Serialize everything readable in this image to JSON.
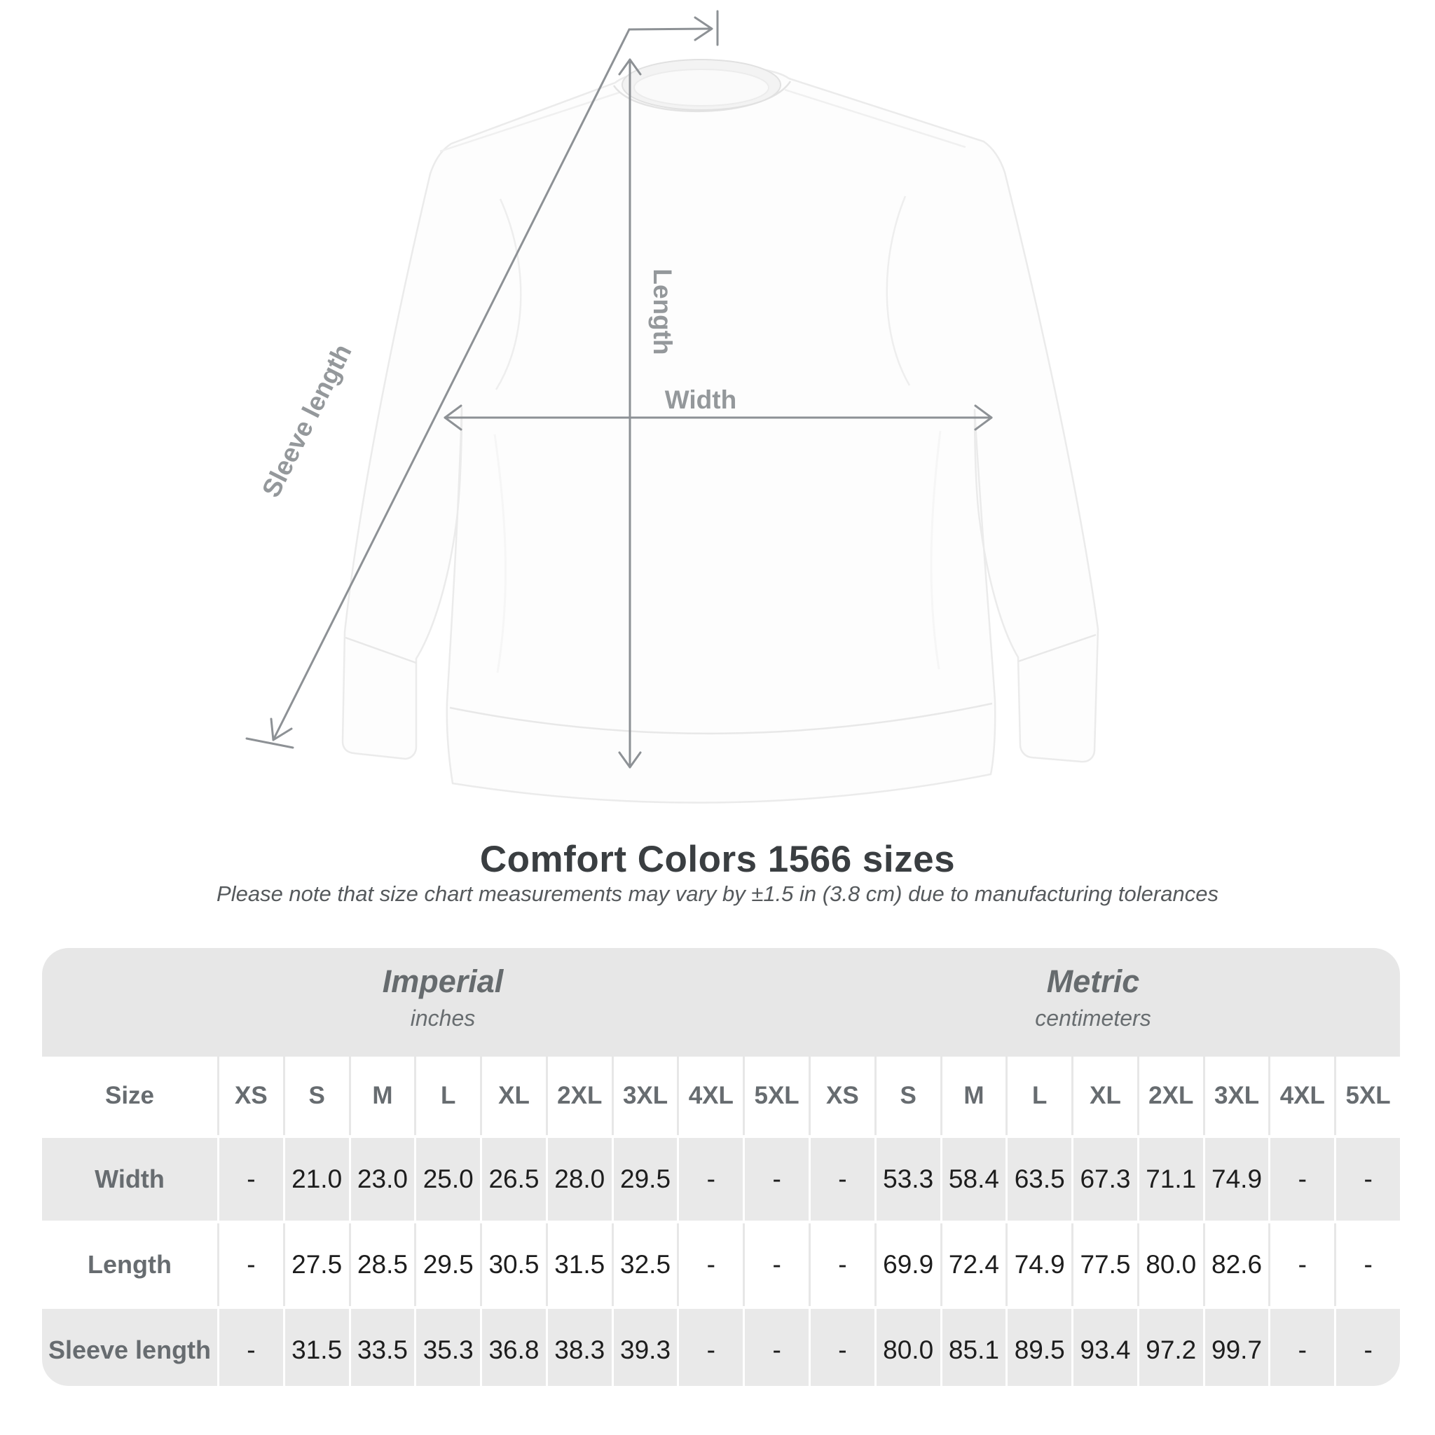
{
  "title": "Comfort Colors 1566 sizes",
  "subtitle": "Please note that size chart measurements may vary by ±1.5 in (3.8 cm) due to manufacturing tolerances",
  "diagram": {
    "garment": "white crewneck sweatshirt",
    "labels": {
      "length": "Length",
      "width": "Width",
      "sleeve": "Sleeve length"
    }
  },
  "colors": {
    "background": "#ffffff",
    "band_gray": "#e7e7e7",
    "row_alt_gray": "#e9e9e9",
    "header_text": "#676c70",
    "value_text": "#1d1d1d",
    "title_text": "#3a3e41",
    "measure_line": "#8d9195",
    "measure_label": "#94989b"
  },
  "table": {
    "size_header": "Size",
    "unit_groups": [
      {
        "name": "Imperial",
        "unit": "inches"
      },
      {
        "name": "Metric",
        "unit": "centimeters"
      }
    ],
    "columns": [
      "XS",
      "S",
      "M",
      "L",
      "XL",
      "2XL",
      "3XL",
      "4XL",
      "5XL",
      "XS",
      "S",
      "M",
      "L",
      "XL",
      "2XL",
      "3XL",
      "4XL",
      "5XL"
    ],
    "rows": [
      {
        "label": "Width",
        "values": [
          "-",
          "21.0",
          "23.0",
          "25.0",
          "26.5",
          "28.0",
          "29.5",
          "-",
          "-",
          "-",
          "53.3",
          "58.4",
          "63.5",
          "67.3",
          "71.1",
          "74.9",
          "-",
          "-"
        ]
      },
      {
        "label": "Length",
        "values": [
          "-",
          "27.5",
          "28.5",
          "29.5",
          "30.5",
          "31.5",
          "32.5",
          "-",
          "-",
          "-",
          "69.9",
          "72.4",
          "74.9",
          "77.5",
          "80.0",
          "82.6",
          "-",
          "-"
        ]
      },
      {
        "label": "Sleeve length",
        "values": [
          "-",
          "31.5",
          "33.5",
          "35.3",
          "36.8",
          "38.3",
          "39.3",
          "-",
          "-",
          "-",
          "80.0",
          "85.1",
          "89.5",
          "93.4",
          "97.2",
          "99.7",
          "-",
          "-"
        ]
      }
    ]
  },
  "chart_data": {
    "type": "table",
    "title": "Comfort Colors 1566 sizes",
    "note": "Please note that size chart measurements may vary by ±1.5 in (3.8 cm) due to manufacturing tolerances",
    "column_groups": [
      "Imperial (inches)",
      "Metric (centimeters)"
    ],
    "columns": [
      "XS",
      "S",
      "M",
      "L",
      "XL",
      "2XL",
      "3XL",
      "4XL",
      "5XL",
      "XS",
      "S",
      "M",
      "L",
      "XL",
      "2XL",
      "3XL",
      "4XL",
      "5XL"
    ],
    "rows": [
      {
        "label": "Width",
        "imperial_in": {
          "S": 21.0,
          "M": 23.0,
          "L": 25.0,
          "XL": 26.5,
          "2XL": 28.0,
          "3XL": 29.5
        },
        "metric_cm": {
          "S": 53.3,
          "M": 58.4,
          "L": 63.5,
          "XL": 67.3,
          "2XL": 71.1,
          "3XL": 74.9
        }
      },
      {
        "label": "Length",
        "imperial_in": {
          "S": 27.5,
          "M": 28.5,
          "L": 29.5,
          "XL": 30.5,
          "2XL": 31.5,
          "3XL": 32.5
        },
        "metric_cm": {
          "S": 69.9,
          "M": 72.4,
          "L": 74.9,
          "XL": 77.5,
          "2XL": 80.0,
          "3XL": 82.6
        }
      },
      {
        "label": "Sleeve length",
        "imperial_in": {
          "S": 31.5,
          "M": 33.5,
          "L": 35.3,
          "XL": 36.8,
          "2XL": 38.3,
          "3XL": 39.3
        },
        "metric_cm": {
          "S": 80.0,
          "M": 85.1,
          "L": 89.5,
          "XL": 93.4,
          "2XL": 97.2,
          "3XL": 99.7
        }
      }
    ],
    "unavailable_sizes": [
      "XS",
      "4XL",
      "5XL"
    ]
  }
}
